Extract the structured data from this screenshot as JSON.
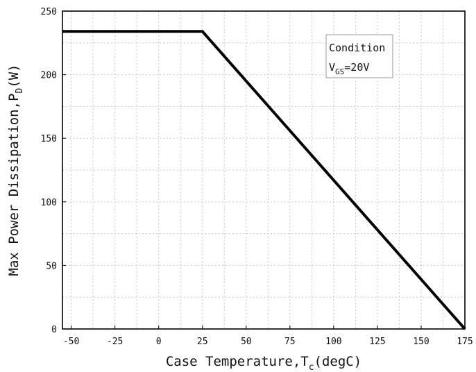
{
  "chart_data": {
    "type": "line",
    "title": "",
    "xlabel": {
      "main": "Case Temperature,T",
      "subscript": "c",
      "suffix": "(degC)"
    },
    "ylabel": {
      "main": "Max Power Dissipation,P",
      "subscript": "D",
      "suffix": "(W)"
    },
    "xlim": [
      -55,
      175
    ],
    "ylim": [
      0,
      250
    ],
    "xticks": [
      -50,
      -25,
      0,
      25,
      50,
      75,
      100,
      125,
      150,
      175
    ],
    "yticks": [
      0,
      50,
      100,
      150,
      200,
      250
    ],
    "x_minor_step": 12.5,
    "y_minor_step": 25,
    "grid": true,
    "legend": "none",
    "series": [
      {
        "color": "#000000",
        "points": [
          [
            -55,
            234
          ],
          [
            25,
            234
          ],
          [
            175,
            0
          ]
        ]
      }
    ],
    "annotation": {
      "line1": "Condition",
      "line2_main": "V",
      "line2_sub": "GS",
      "line2_suffix": "=20V",
      "position": "top-right"
    },
    "colors": {
      "line": "#000000",
      "grid": "#c8c8c8",
      "frame": "#000000"
    }
  }
}
